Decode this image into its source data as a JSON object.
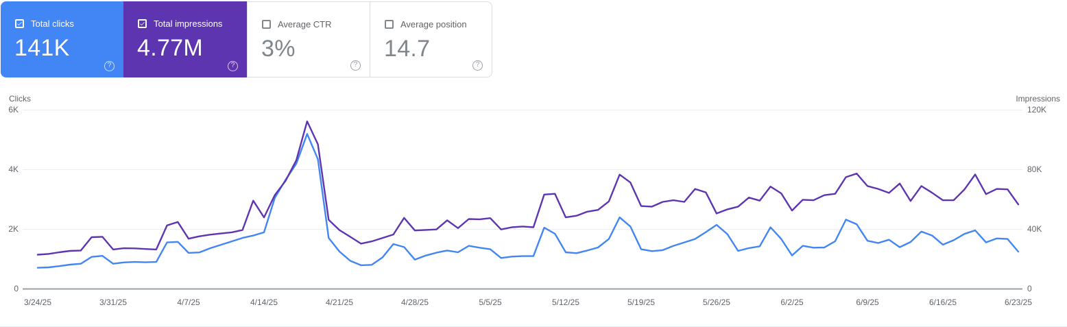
{
  "cards": [
    {
      "label": "Total clicks",
      "value": "141K",
      "checked": true,
      "bg": "#4285f4"
    },
    {
      "label": "Total impressions",
      "value": "4.77M",
      "checked": true,
      "bg": "#5e35b1"
    },
    {
      "label": "Average CTR",
      "value": "3%",
      "checked": false
    },
    {
      "label": "Average position",
      "value": "14.7",
      "checked": false
    }
  ],
  "help_icon_glyph": "?",
  "chart_data": {
    "type": "line",
    "frequency": "daily",
    "x_start": "3/24/25",
    "x_end": "6/23/25",
    "x_tick_labels": [
      "3/24/25",
      "3/31/25",
      "4/7/25",
      "4/14/25",
      "4/21/25",
      "4/28/25",
      "5/5/25",
      "5/12/25",
      "5/19/25",
      "5/26/25",
      "6/2/25",
      "6/9/25",
      "6/16/25",
      "6/23/25"
    ],
    "left_axis": {
      "label": "Clicks",
      "ticks": [
        "6K",
        "4K",
        "2K",
        "0"
      ],
      "range": [
        0,
        6000
      ]
    },
    "right_axis": {
      "label": "Impressions",
      "ticks": [
        "120K",
        "80K",
        "40K",
        "0"
      ],
      "range": [
        0,
        120000
      ]
    },
    "grid": true,
    "legend": "none",
    "series": [
      {
        "name": "Total clicks",
        "axis": "left",
        "color": "#4285f4",
        "values": [
          710,
          725,
          765,
          815,
          845,
          1075,
          1110,
          845,
          890,
          905,
          895,
          905,
          1560,
          1580,
          1210,
          1225,
          1365,
          1480,
          1595,
          1710,
          1790,
          1900,
          3050,
          3660,
          4200,
          5200,
          4350,
          1710,
          1255,
          945,
          795,
          810,
          1060,
          1505,
          1405,
          985,
          1120,
          1215,
          1290,
          1230,
          1445,
          1385,
          1330,
          1040,
          1085,
          1100,
          1100,
          2055,
          1850,
          1230,
          1200,
          1290,
          1390,
          1675,
          2400,
          2095,
          1330,
          1270,
          1300,
          1445,
          1560,
          1675,
          1905,
          2150,
          1840,
          1275,
          1370,
          1430,
          2070,
          1675,
          1125,
          1445,
          1385,
          1390,
          1600,
          2325,
          2170,
          1615,
          1540,
          1650,
          1400,
          1575,
          1925,
          1790,
          1485,
          1635,
          1845,
          1965,
          1560,
          1695,
          1675,
          1250
        ]
      },
      {
        "name": "Total impressions",
        "axis": "right",
        "color": "#5e35b1",
        "values": [
          23000,
          23500,
          24600,
          25500,
          25800,
          34700,
          35000,
          26500,
          27300,
          27200,
          26800,
          26500,
          42600,
          44900,
          33700,
          35300,
          36400,
          37200,
          38000,
          39500,
          59200,
          48000,
          62900,
          72500,
          86300,
          112400,
          97000,
          46400,
          39500,
          35000,
          30400,
          31900,
          34200,
          36500,
          47700,
          39200,
          39600,
          39900,
          46000,
          40800,
          46900,
          46700,
          47500,
          39900,
          41400,
          41900,
          41400,
          63300,
          63800,
          48000,
          49100,
          51800,
          53000,
          58700,
          76700,
          71400,
          55600,
          55200,
          58400,
          59500,
          58400,
          67100,
          64800,
          50600,
          53400,
          55200,
          61300,
          59200,
          68700,
          64100,
          52600,
          59800,
          59500,
          62900,
          63800,
          75000,
          77400,
          69000,
          67100,
          64400,
          70700,
          59000,
          69000,
          64500,
          59500,
          59500,
          66700,
          76800,
          63600,
          67100,
          66800,
          56700
        ]
      }
    ]
  }
}
